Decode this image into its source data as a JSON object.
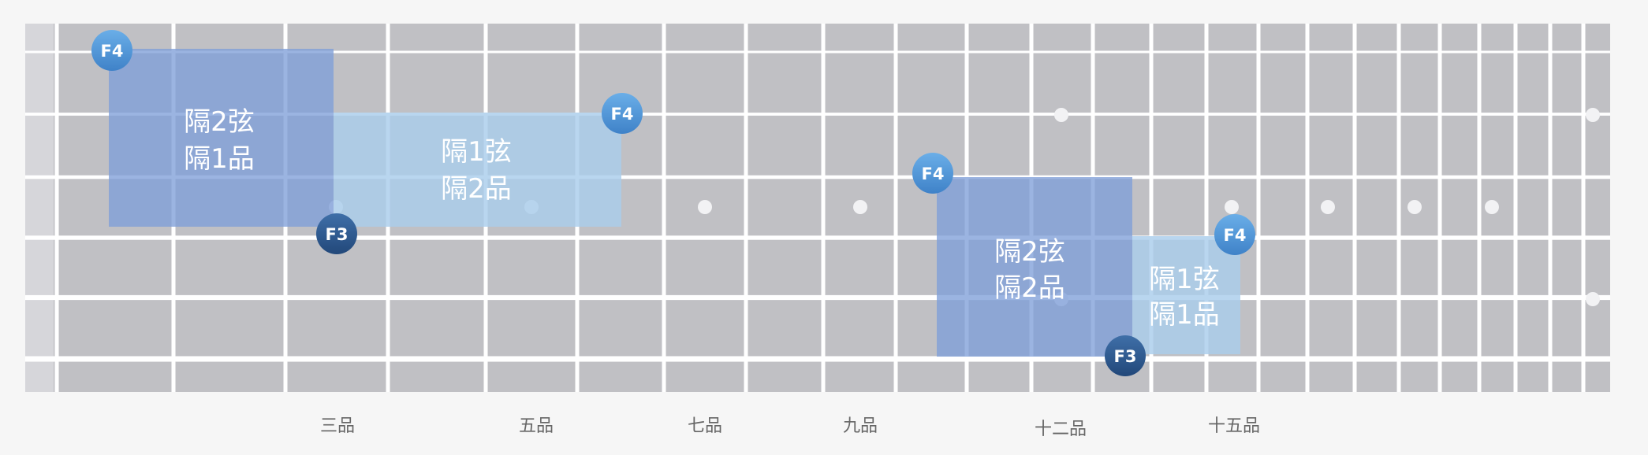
{
  "fret_labels": [
    "三品",
    "五品",
    "七品",
    "九品",
    "十二品",
    "十五品"
  ],
  "regions": [
    {
      "line1": "隔2弦",
      "line2": "隔1品",
      "tone": "dark"
    },
    {
      "line1": "隔1弦",
      "line2": "隔2品",
      "tone": "light"
    },
    {
      "line1": "隔2弦",
      "line2": "隔2品",
      "tone": "dark"
    },
    {
      "line1": "隔1弦",
      "line2": "隔1品",
      "tone": "light"
    }
  ],
  "notes": [
    {
      "label": "F4",
      "kind": "F4"
    },
    {
      "label": "F3",
      "kind": "F3"
    },
    {
      "label": "F4",
      "kind": "F4"
    },
    {
      "label": "F4",
      "kind": "F4"
    },
    {
      "label": "F3",
      "kind": "F3"
    },
    {
      "label": "F4",
      "kind": "F4"
    }
  ],
  "colors": {
    "board": "#c0c0c4",
    "fret": "#ffffff",
    "string": "#ffffff",
    "inlay": "#f2f2f4",
    "region_dark": "#7f9fd8",
    "region_light": "#a9cdec",
    "f4_note": "#4d94d8",
    "f3_note": "#2e5a90"
  }
}
